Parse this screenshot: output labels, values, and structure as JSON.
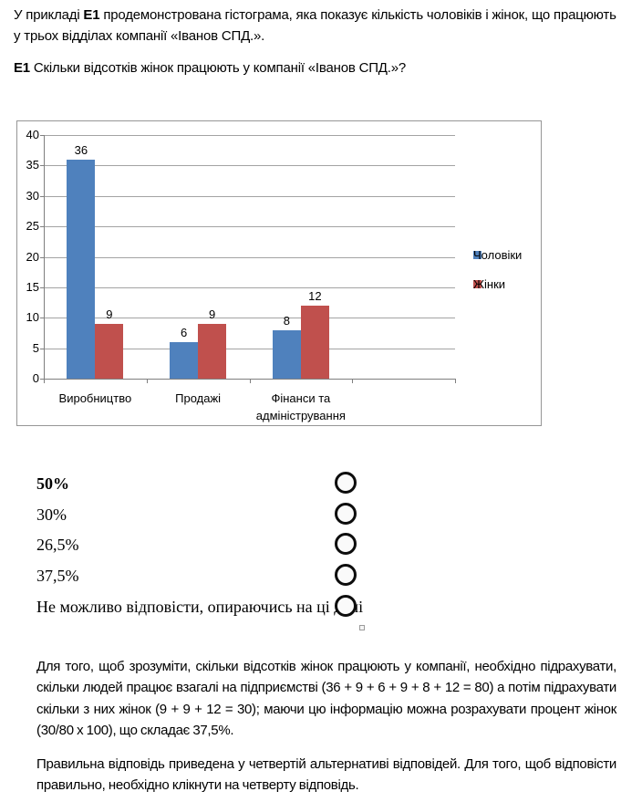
{
  "intro": {
    "pre": "У прикладі ",
    "bold": "Е1",
    "post": " продемонстрована гістограма, яка показує кількість чоловіків і жінок, що працюють у трьох відділах компанії «Іванов СПД.».",
    "q_bold": "Е1",
    "q_rest": " Скільки відсотків жінок працюють у компанії «Іванов СПД.»?"
  },
  "chart_data": {
    "type": "bar",
    "categories": [
      "Виробництво",
      "Продажі",
      "Фінанси та адміністрування"
    ],
    "series": [
      {
        "name": "Чоловіки",
        "color": "#4F81BD",
        "values": [
          36,
          6,
          8
        ]
      },
      {
        "name": "Жінки",
        "color": "#C0504D",
        "values": [
          9,
          9,
          12
        ]
      }
    ],
    "title": "",
    "xlabel": "",
    "ylabel": "",
    "ylim": [
      0,
      40
    ],
    "ytick_step": 5,
    "grid": true,
    "data_labels": true,
    "legend_position": "right",
    "x_slots": 4
  },
  "options": [
    {
      "label": "50%",
      "bold": true
    },
    {
      "label": "30%",
      "bold": false
    },
    {
      "label": "26,5%",
      "bold": false
    },
    {
      "label": "37,5%",
      "bold": false
    },
    {
      "label": "Не можливо відповісти, опираючись на ці дані",
      "bold": false
    }
  ],
  "explanation": {
    "p1": "Для того, щоб зрозуміти, скільки відсотків жінок працюють у компанії, необхідно підрахувати, скільки людей працює взагалі на підприємстві  (36 + 9 + 6 + 9 + 8 + 12 = 80) а потім підрахувати скільки з них жінок (9 + 9 + 12 = 30); маючи цю інформацію можна розрахувати процент жінок (30/80 х 100), що складає 37,5%.",
    "p2": "Правильна відповідь приведена у четвертій альтернативі відповідей. Для того, щоб відповісти правильно, необхідно клікнути на четверту відповідь."
  }
}
